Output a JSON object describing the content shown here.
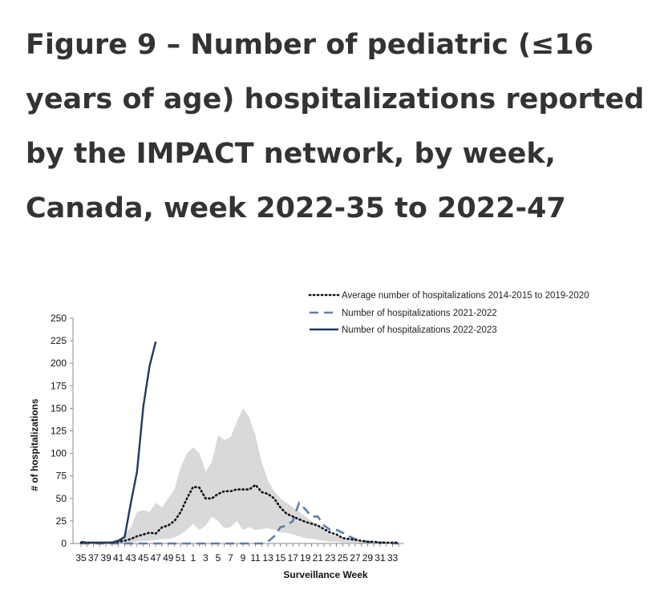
{
  "title": "Figure 9 – Number of pediatric (≤16 years of age) hospitalizations reported by the IMPACT network, by week, Canada, week 2022-35 to 2022-47",
  "chart_data": {
    "type": "line",
    "xlabel": "Surveillance Week",
    "ylabel": "# of hospitalizations",
    "ylim": [
      0,
      250
    ],
    "yticks": [
      0,
      25,
      50,
      75,
      100,
      125,
      150,
      175,
      200,
      225,
      250
    ],
    "weeks": [
      35,
      36,
      37,
      38,
      39,
      40,
      41,
      42,
      43,
      44,
      45,
      46,
      47,
      48,
      49,
      50,
      51,
      52,
      1,
      2,
      3,
      4,
      5,
      6,
      7,
      8,
      9,
      10,
      11,
      12,
      13,
      14,
      15,
      16,
      17,
      18,
      19,
      20,
      21,
      22,
      23,
      24,
      25,
      26,
      27,
      28,
      29,
      30,
      31,
      32,
      33,
      34
    ],
    "xtick_labels": [
      "35",
      "37",
      "39",
      "41",
      "43",
      "45",
      "47",
      "49",
      "51",
      "1",
      "3",
      "5",
      "7",
      "9",
      "11",
      "13",
      "15",
      "17",
      "19",
      "21",
      "23",
      "25",
      "27",
      "29",
      "31",
      "33"
    ],
    "legend_position": "top-right",
    "colors": {
      "average": "#111111",
      "y2021": "#5b7fb0",
      "y2022": "#1f3a60",
      "range": "#d9d9d9"
    },
    "series": [
      {
        "name": "Average number of hospitalizations 2014-2015 to 2019-2020",
        "style": "dotted",
        "values": [
          1,
          1,
          1,
          1,
          1,
          1,
          2,
          3,
          5,
          8,
          10,
          12,
          11,
          18,
          20,
          25,
          35,
          50,
          63,
          62,
          50,
          50,
          55,
          58,
          58,
          60,
          60,
          60,
          65,
          57,
          55,
          50,
          40,
          33,
          30,
          27,
          24,
          22,
          20,
          16,
          12,
          10,
          6,
          5,
          4,
          3,
          2,
          2,
          1,
          1,
          1,
          1
        ]
      },
      {
        "name": "Number of hospitalizations 2021-2022",
        "style": "dashed",
        "values": [
          0,
          0,
          0,
          0,
          0,
          0,
          0,
          0,
          0,
          0,
          0,
          0,
          0,
          0,
          0,
          0,
          0,
          0,
          0,
          0,
          0,
          0,
          0,
          0,
          0,
          0,
          0,
          0,
          0,
          0,
          2,
          8,
          18,
          20,
          25,
          45,
          38,
          30,
          30,
          20,
          15,
          15,
          12,
          8,
          5,
          3,
          2,
          1,
          1,
          1,
          0,
          0
        ]
      },
      {
        "name": "Number of hospitalizations 2022-2023",
        "style": "solid",
        "values": [
          2,
          1,
          1,
          1,
          1,
          1,
          3,
          7,
          45,
          80,
          152,
          197,
          224
        ]
      }
    ],
    "range_band": {
      "upper": [
        2,
        2,
        2,
        2,
        2,
        3,
        5,
        10,
        18,
        35,
        37,
        35,
        45,
        40,
        50,
        60,
        85,
        100,
        107,
        100,
        80,
        90,
        120,
        115,
        118,
        135,
        150,
        140,
        120,
        90,
        70,
        58,
        50,
        45,
        40,
        35,
        30,
        25,
        20,
        15,
        10,
        8,
        6,
        5,
        4,
        3,
        2,
        2,
        2,
        2,
        2,
        2
      ],
      "lower": [
        0,
        0,
        0,
        0,
        0,
        0,
        0,
        0,
        1,
        2,
        3,
        3,
        4,
        5,
        5,
        7,
        10,
        15,
        22,
        15,
        20,
        30,
        25,
        17,
        18,
        25,
        15,
        18,
        15,
        16,
        17,
        15,
        12,
        12,
        10,
        8,
        6,
        5,
        4,
        3,
        2,
        2,
        1,
        1,
        1,
        0,
        0,
        0,
        0,
        0,
        0,
        0
      ]
    }
  }
}
